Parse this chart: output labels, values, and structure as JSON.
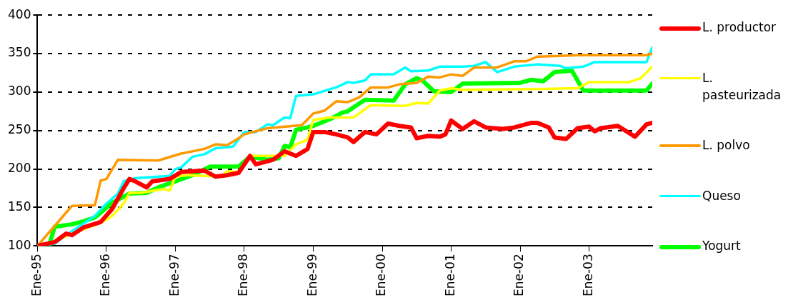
{
  "chart_data": {
    "type": "line",
    "xlim": [
      "1995-01",
      "2003-12"
    ],
    "xticks": [
      {
        "value": "1995-01",
        "label": "Ene-95"
      },
      {
        "value": "1996-01",
        "label": "Ene-96"
      },
      {
        "value": "1997-01",
        "label": "Ene-97"
      },
      {
        "value": "1998-01",
        "label": "Ene-98"
      },
      {
        "value": "1999-01",
        "label": "Ene-99"
      },
      {
        "value": "2000-01",
        "label": "Ene-00"
      },
      {
        "value": "2001-01",
        "label": "Ene-01"
      },
      {
        "value": "2002-01",
        "label": "Ene-02"
      },
      {
        "value": "2003-01",
        "label": "Ene-03"
      }
    ],
    "ylim": [
      100,
      400
    ],
    "yticks": [
      100,
      150,
      200,
      250,
      300,
      350,
      400
    ],
    "grid": "y",
    "legend": "right",
    "marker": "none",
    "line_style": "solid",
    "series": [
      {
        "name": "L. productor",
        "color": "#ff0000",
        "x": [
          "1995-01",
          "1995-04",
          "1995-06",
          "1995-07",
          "1995-09",
          "1995-12",
          "1996-02",
          "1996-04",
          "1996-05",
          "1996-06",
          "1996-08",
          "1996-09",
          "1996-12",
          "1997-02",
          "1997-06",
          "1997-08",
          "1997-10",
          "1997-12",
          "1998-02",
          "1998-03",
          "1998-06",
          "1998-08",
          "1998-10",
          "1998-12",
          "1999-01",
          "1999-03",
          "1999-05",
          "1999-07",
          "1999-08",
          "1999-10",
          "1999-12",
          "2000-02",
          "2000-04",
          "2000-06",
          "2000-07",
          "2000-09",
          "2000-11",
          "2000-12",
          "2001-01",
          "2001-03",
          "2001-05",
          "2001-07",
          "2001-10",
          "2001-12",
          "2002-03",
          "2002-04",
          "2002-06",
          "2002-07",
          "2002-09",
          "2002-11",
          "2003-01",
          "2003-02",
          "2003-03",
          "2003-06",
          "2003-09",
          "2003-11",
          "2003-12"
        ],
        "values": [
          100,
          105,
          116,
          114,
          124,
          131,
          148,
          175,
          187,
          184,
          176,
          184,
          187,
          196,
          198,
          190,
          192,
          195,
          217,
          206,
          212,
          223,
          217,
          226,
          248,
          248,
          245,
          241,
          235,
          248,
          245,
          259,
          256,
          254,
          240,
          243,
          242,
          245,
          263,
          252,
          262,
          254,
          252,
          254,
          260,
          260,
          254,
          241,
          239,
          253,
          255,
          249,
          253,
          256,
          242,
          258,
          260
        ]
      },
      {
        "name": "L. pasteurizada",
        "color": "#ffff00",
        "x": [
          "1995-01",
          "1995-04",
          "1995-07",
          "1995-11",
          "1996-01",
          "1996-02",
          "1996-04",
          "1996-05",
          "1996-07",
          "1996-11",
          "1996-12",
          "1997-01",
          "1997-03",
          "1997-09",
          "1997-10",
          "1997-12",
          "1998-02",
          "1998-08",
          "1998-10",
          "1998-12",
          "1999-01",
          "1999-04",
          "1999-08",
          "1999-11",
          "2000-05",
          "2000-07",
          "2000-09",
          "2000-11",
          "2001-01",
          "2001-03",
          "2002-05",
          "2002-11",
          "2003-01",
          "2003-08",
          "2003-10",
          "2003-12"
        ],
        "values": [
          100,
          106,
          116,
          127,
          134,
          139,
          155,
          169,
          169,
          174,
          172,
          190,
          192,
          190,
          197,
          196,
          217,
          217,
          232,
          238,
          264,
          267,
          267,
          283,
          282,
          286,
          285,
          302,
          305,
          303,
          304,
          305,
          313,
          313,
          318,
          333
        ]
      },
      {
        "name": "L. polvo",
        "color": "#ff9900",
        "x": [
          "1995-01",
          "1995-07",
          "1995-11",
          "1995-12",
          "1996-01",
          "1996-03",
          "1996-10",
          "1997-02",
          "1997-06",
          "1997-08",
          "1997-10",
          "1997-12",
          "1998-01",
          "1998-05",
          "1998-11",
          "1999-01",
          "1999-03",
          "1999-05",
          "1999-07",
          "1999-09",
          "1999-11",
          "2000-02",
          "2000-04",
          "2000-07",
          "2000-09",
          "2000-11",
          "2001-01",
          "2001-03",
          "2001-05",
          "2001-09",
          "2001-12",
          "2002-02",
          "2002-04",
          "2002-08",
          "2002-11",
          "2003-11",
          "2003-12"
        ],
        "values": [
          100,
          152,
          153,
          185,
          187,
          212,
          211,
          220,
          226,
          232,
          231,
          240,
          245,
          253,
          257,
          272,
          276,
          288,
          287,
          293,
          306,
          306,
          310,
          312,
          320,
          319,
          323,
          321,
          332,
          332,
          340,
          340,
          346,
          347,
          348,
          348,
          350
        ]
      },
      {
        "name": "Queso",
        "color": "#00ffff",
        "x": [
          "1995-01",
          "1995-04",
          "1995-07",
          "1995-11",
          "1996-01",
          "1996-03",
          "1996-04",
          "1996-06",
          "1996-12",
          "1997-01",
          "1997-02",
          "1997-04",
          "1997-06",
          "1997-08",
          "1997-11",
          "1998-01",
          "1998-03",
          "1998-05",
          "1998-06",
          "1998-08",
          "1998-09",
          "1998-10",
          "1999-01",
          "1999-04",
          "1999-05",
          "1999-07",
          "1999-08",
          "1999-10",
          "1999-11",
          "2000-03",
          "2000-05",
          "2000-06",
          "2000-09",
          "2000-11",
          "2001-03",
          "2001-05",
          "2001-07",
          "2001-09",
          "2001-12",
          "2002-04",
          "2002-08",
          "2002-09",
          "2002-12",
          "2003-02",
          "2003-11",
          "2003-12"
        ],
        "values": [
          100,
          103,
          119,
          139,
          155,
          168,
          184,
          188,
          191,
          200,
          202,
          216,
          219,
          227,
          229,
          248,
          248,
          258,
          257,
          267,
          266,
          295,
          297,
          304,
          306,
          313,
          312,
          315,
          323,
          323,
          332,
          327,
          328,
          333,
          333,
          334,
          339,
          326,
          333,
          336,
          334,
          331,
          333,
          339,
          339,
          358
        ]
      },
      {
        "name": "Yogurt",
        "color": "#00ff00",
        "x": [
          "1995-01",
          "1995-03",
          "1995-04",
          "1995-07",
          "1995-09",
          "1995-11",
          "1996-02",
          "1996-05",
          "1996-08",
          "1996-10",
          "1997-01",
          "1997-04",
          "1997-07",
          "1997-12",
          "1998-02",
          "1998-05",
          "1998-07",
          "1998-08",
          "1998-09",
          "1998-10",
          "1998-12",
          "1999-01",
          "1999-04",
          "1999-06",
          "1999-07",
          "1999-10",
          "2000-03",
          "2000-05",
          "2000-07",
          "2000-08",
          "2000-10",
          "2001-01",
          "2001-03",
          "2002-01",
          "2002-03",
          "2002-05",
          "2002-07",
          "2002-10",
          "2002-12",
          "2003-11",
          "2003-12"
        ],
        "values": [
          100,
          100,
          125,
          128,
          132,
          137,
          156,
          168,
          169,
          176,
          184,
          192,
          203,
          203,
          216,
          212,
          214,
          230,
          228,
          251,
          254,
          256,
          265,
          273,
          275,
          290,
          289,
          310,
          318,
          315,
          301,
          300,
          311,
          312,
          316,
          314,
          326,
          328,
          302,
          302,
          311
        ]
      }
    ]
  }
}
